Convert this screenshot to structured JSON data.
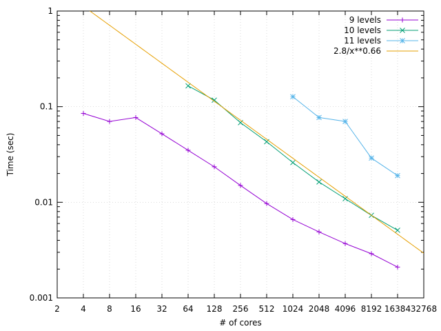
{
  "chart_data": {
    "type": "line",
    "xlabel": "# of cores",
    "ylabel": "Time (sec)",
    "x_scale": "log2",
    "y_scale": "log10",
    "xlim": [
      2,
      32768
    ],
    "ylim": [
      0.001,
      1
    ],
    "x_ticks": [
      "2",
      "4",
      "8",
      "16",
      "32",
      "64",
      "128",
      "256",
      "512",
      "1024",
      "2048",
      "4096",
      "8192",
      "16384",
      "32768"
    ],
    "y_ticks": [
      "0.001",
      "0.01",
      "0.1",
      "1"
    ],
    "grid": true,
    "legend_position": "top-right",
    "series": [
      {
        "name": "9 levels",
        "color": "#9400d3",
        "marker": "plus",
        "x": [
          4,
          8,
          16,
          32,
          64,
          128,
          256,
          512,
          1024,
          2048,
          4096,
          8192,
          16384
        ],
        "y": [
          0.085,
          0.07,
          0.077,
          0.052,
          0.035,
          0.0235,
          0.015,
          0.0097,
          0.0066,
          0.0049,
          0.0037,
          0.0029,
          0.0021
        ]
      },
      {
        "name": "10 levels",
        "color": "#009e73",
        "marker": "cross",
        "x": [
          64,
          128,
          256,
          512,
          1024,
          2048,
          4096,
          8192,
          16384
        ],
        "y": [
          0.165,
          0.117,
          0.068,
          0.043,
          0.026,
          0.0163,
          0.0109,
          0.0073,
          0.0051
        ]
      },
      {
        "name": "11 levels",
        "color": "#56b4e9",
        "marker": "star",
        "x": [
          1024,
          2048,
          4096,
          8192,
          16384
        ],
        "y": [
          0.127,
          0.077,
          0.07,
          0.029,
          0.019
        ]
      },
      {
        "name": "2.8/x**0.66",
        "color": "#e69f00",
        "marker": "none",
        "function": "2.8/x**0.66",
        "coef": 2.8,
        "exponent": 0.66
      }
    ]
  }
}
